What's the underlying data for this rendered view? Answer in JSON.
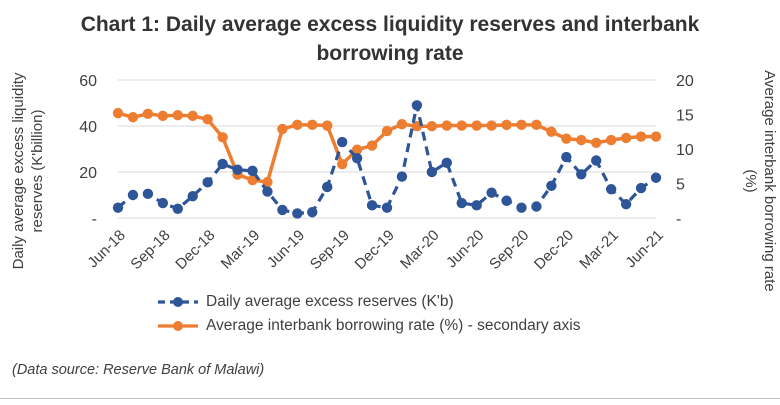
{
  "chart_data": {
    "type": "line",
    "title": "Chart 1: Daily average excess liquidity reserves and interbank borrowing rate",
    "ylabel_left": "Daily average excess liquidity\nreserves (K'billion)",
    "ylabel_right": "Average interbank borrowing rate\n(%)",
    "ylim_left": [
      0,
      60
    ],
    "yticks_left": [
      "-",
      "20",
      "40",
      "60"
    ],
    "ylim_right": [
      0,
      20
    ],
    "yticks_right": [
      "-",
      "5",
      "10",
      "15",
      "20"
    ],
    "x_tick_labels": [
      "Jun-18",
      "Sep-18",
      "Dec-18",
      "Mar-19",
      "Jun-19",
      "Sep-19",
      "Dec-19",
      "Mar-20",
      "Jun-20",
      "Sep-20",
      "Dec-20",
      "Mar-21",
      "Jun-21"
    ],
    "x_count": 37,
    "grid": "horizontal",
    "legend_position": "bottom",
    "series": [
      {
        "name": "Daily average excess reserves (K'b)",
        "axis": "left",
        "color": "#2e5597",
        "style": "dashed",
        "values": [
          4.5,
          10,
          10.5,
          6.5,
          4,
          9.5,
          15.5,
          23.5,
          21,
          20.5,
          11.5,
          3.5,
          2,
          2.5,
          13.5,
          33,
          26,
          5.5,
          4.5,
          18,
          49,
          20,
          24,
          6.5,
          5.5,
          11,
          7.5,
          4.5,
          5,
          14,
          26.5,
          19,
          25,
          12.5,
          6,
          13,
          17.5
        ]
      },
      {
        "name": "Average interbank borrowing rate (%)  - secondary axis",
        "axis": "right",
        "color": "#ed7d31",
        "style": "solid",
        "values": [
          15.2,
          14.6,
          15.1,
          14.8,
          14.9,
          14.8,
          14.3,
          11.7,
          6.3,
          5.5,
          5.2,
          12.9,
          13.5,
          13.5,
          13.4,
          7.8,
          9.9,
          10.5,
          12.6,
          13.6,
          13.3,
          13.3,
          13.4,
          13.4,
          13.4,
          13.4,
          13.5,
          13.5,
          13.5,
          12.5,
          11.5,
          11.3,
          10.9,
          11.3,
          11.6,
          11.8,
          11.8
        ]
      }
    ]
  },
  "source_note": "(Data source: Reserve Bank of Malawi)"
}
